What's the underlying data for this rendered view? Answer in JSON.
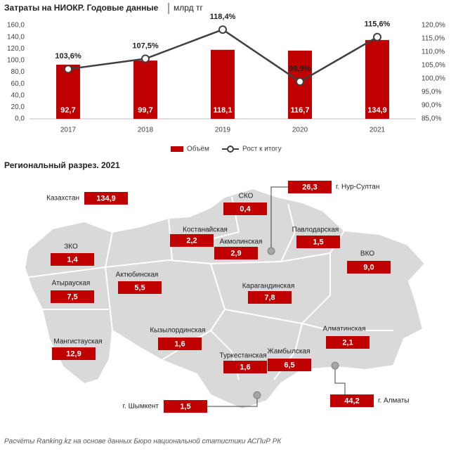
{
  "header": {
    "title": "Затраты на НИОКР. Годовые данные",
    "unit": "млрд тг"
  },
  "chart_data": {
    "type": "bar",
    "categories": [
      "2017",
      "2018",
      "2019",
      "2020",
      "2021"
    ],
    "series": [
      {
        "name": "Объём",
        "color": "#c00000",
        "values": [
          92.7,
          99.7,
          118.1,
          116.7,
          134.9
        ],
        "value_labels": [
          "92,7",
          "99,7",
          "118,1",
          "116,7",
          "134,9"
        ]
      },
      {
        "name": "Рост к итогу",
        "type": "line",
        "axis": "y2",
        "color": "#404040",
        "values": [
          103.6,
          107.5,
          118.4,
          98.9,
          115.6
        ],
        "value_labels": [
          "103,6%",
          "107,5%",
          "118,4%",
          "98,9%",
          "115,6%"
        ]
      }
    ],
    "ylim": [
      0,
      160
    ],
    "yticks": [
      {
        "value": 0,
        "label": "0,0"
      },
      {
        "value": 20,
        "label": "20,0"
      },
      {
        "value": 40,
        "label": "40,0"
      },
      {
        "value": 60,
        "label": "60,0"
      },
      {
        "value": 80,
        "label": "80,0"
      },
      {
        "value": 100,
        "label": "100,0"
      },
      {
        "value": 120,
        "label": "120,0"
      },
      {
        "value": 140,
        "label": "140,0"
      },
      {
        "value": 160,
        "label": "160,0"
      }
    ],
    "y2lim": [
      85,
      120
    ],
    "y2ticks": [
      {
        "value": 85,
        "label": "85,0%"
      },
      {
        "value": 90,
        "label": "90,0%"
      },
      {
        "value": 95,
        "label": "95,0%"
      },
      {
        "value": 100,
        "label": "100,0%"
      },
      {
        "value": 105,
        "label": "105,0%"
      },
      {
        "value": 110,
        "label": "110,0%"
      },
      {
        "value": 115,
        "label": "115,0%"
      },
      {
        "value": 120,
        "label": "120,0%"
      }
    ]
  },
  "map": {
    "title": "Региональный разрез. 2021",
    "regions": [
      {
        "name": "Казахстан",
        "value": "134,9"
      },
      {
        "name": "СКО",
        "value": "0,4"
      },
      {
        "name": "г. Нур-Султан",
        "value": "26,3"
      },
      {
        "name": "Костанайская",
        "value": "2,2"
      },
      {
        "name": "Акмолинская",
        "value": "2,9"
      },
      {
        "name": "Павлодарская",
        "value": "1,5"
      },
      {
        "name": "ЗКО",
        "value": "1,4"
      },
      {
        "name": "ВКО",
        "value": "9,0"
      },
      {
        "name": "Атырауская",
        "value": "7,5"
      },
      {
        "name": "Актюбинская",
        "value": "5,5"
      },
      {
        "name": "Карагандинская",
        "value": "7,8"
      },
      {
        "name": "Кызылординская",
        "value": "1,6"
      },
      {
        "name": "Алматинская",
        "value": "2,1"
      },
      {
        "name": "Мангистауская",
        "value": "12,9"
      },
      {
        "name": "Туркестанская",
        "value": "1,6"
      },
      {
        "name": "Жамбылская",
        "value": "6,5"
      },
      {
        "name": "г. Шымкент",
        "value": "1,5"
      },
      {
        "name": "г. Алматы",
        "value": "44,2"
      }
    ]
  },
  "footer": "Расчёты Ranking.kz на основе данных Бюро национальной статистики АСПиР РК"
}
